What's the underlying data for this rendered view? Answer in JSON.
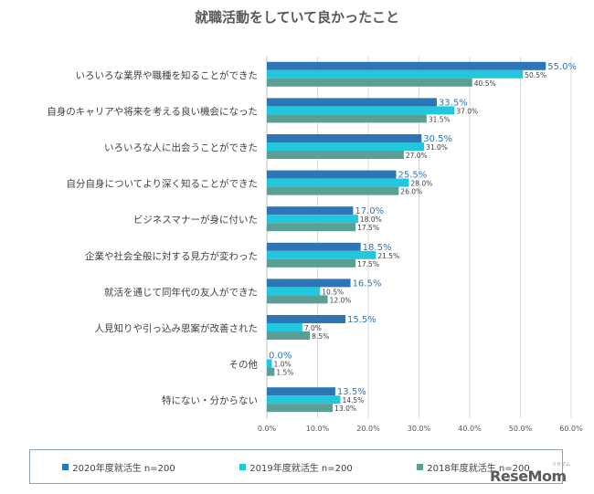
{
  "chart_data": {
    "type": "bar",
    "orientation": "horizontal",
    "title": "就職活動をしていて良かったこと",
    "categories": [
      "いろいろな業界や職種を知ることができた",
      "自身のキャリアや将来を考える良い機会になった",
      "いろいろな人に出会うことができた",
      "自分自身についてより深く知ることができた",
      "ビジネスマナーが身に付いた",
      "企業や社会全般に対する見方が変わった",
      "就活を通じて同年代の友人ができた",
      "人見知りや引っ込み思案が改善された",
      "その他",
      "特にない・分からない"
    ],
    "series": [
      {
        "name": "2020年度就活生 n=200",
        "color": "#2e75b6",
        "labelColor": "#2e75b6",
        "values": [
          55.0,
          33.5,
          30.5,
          25.5,
          17.0,
          18.5,
          16.5,
          15.5,
          0.0,
          13.5
        ],
        "labels": [
          "55.0%",
          "33.5%",
          "30.5%",
          "25.5%",
          "17.0%",
          "18.5%",
          "16.5%",
          "15.5%",
          "0.0%",
          "13.5%"
        ]
      },
      {
        "name": "2019年度就活生 n=200",
        "color": "#22c7dd",
        "labelColor": "#404040",
        "values": [
          50.5,
          37.0,
          31.0,
          28.0,
          18.0,
          21.5,
          10.5,
          7.0,
          1.0,
          14.5
        ],
        "labels": [
          "50.5%",
          "37.0%",
          "31.0%",
          "28.0%",
          "18.0%",
          "21.5%",
          "10.5%",
          "7.0%",
          "1.0%",
          "14.5%"
        ]
      },
      {
        "name": "2018年度就活生 n=200",
        "color": "#5b9e96",
        "labelColor": "#404040",
        "values": [
          40.5,
          31.5,
          27.0,
          26.0,
          17.5,
          17.5,
          12.0,
          8.5,
          1.5,
          13.0
        ],
        "labels": [
          "40.5%",
          "31.5%",
          "27.0%",
          "26.0%",
          "17.5%",
          "17.5%",
          "12.0%",
          "8.5%",
          "1.5%",
          "13.0%"
        ]
      }
    ],
    "xlim": [
      0,
      60
    ],
    "xticks": [
      "0.0%",
      "10.0%",
      "20.0%",
      "30.0%",
      "40.0%",
      "50.0%",
      "60.0%"
    ],
    "grid": true,
    "legend_position": "bottom"
  },
  "watermark": {
    "text": "ReseMom",
    "sub": "リセマム"
  }
}
